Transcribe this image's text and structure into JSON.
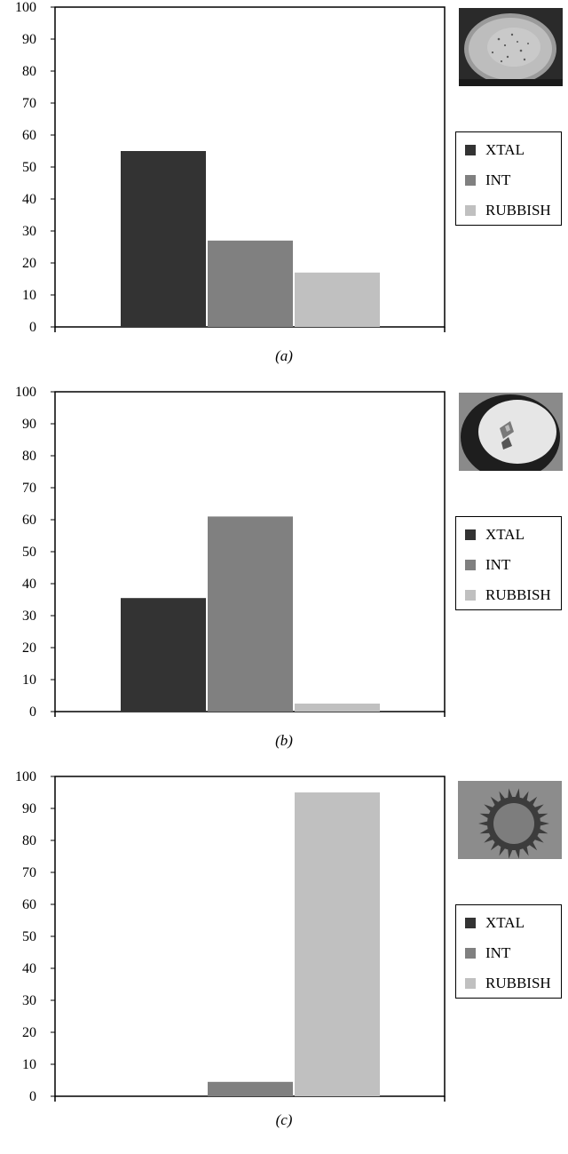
{
  "chart_data": [
    {
      "type": "bar",
      "caption": "(a)",
      "categories": [
        "XTAL",
        "INT",
        "RUBBISH"
      ],
      "values": [
        55,
        27,
        17
      ],
      "ylim": [
        0,
        100
      ],
      "yticks": [
        0,
        10,
        20,
        30,
        40,
        50,
        60,
        70,
        80,
        90,
        100
      ],
      "title": "",
      "xlabel": "",
      "ylabel": "",
      "legend": [
        "XTAL",
        "INT",
        "RUBBISH"
      ],
      "legend_position": "right",
      "grid": false,
      "thumbnail": "crystal-drop-image"
    },
    {
      "type": "bar",
      "caption": "(b)",
      "categories": [
        "XTAL",
        "INT",
        "RUBBISH"
      ],
      "values": [
        35.5,
        61,
        2.5
      ],
      "ylim": [
        0,
        100
      ],
      "yticks": [
        0,
        10,
        20,
        30,
        40,
        50,
        60,
        70,
        80,
        90,
        100
      ],
      "title": "",
      "xlabel": "",
      "ylabel": "",
      "legend": [
        "XTAL",
        "INT",
        "RUBBISH"
      ],
      "legend_position": "right",
      "grid": false,
      "thumbnail": "intermediate-drop-image"
    },
    {
      "type": "bar",
      "caption": "(c)",
      "categories": [
        "XTAL",
        "INT",
        "RUBBISH"
      ],
      "values": [
        0,
        4.5,
        95
      ],
      "ylim": [
        0,
        100
      ],
      "yticks": [
        0,
        10,
        20,
        30,
        40,
        50,
        60,
        70,
        80,
        90,
        100
      ],
      "title": "",
      "xlabel": "",
      "ylabel": "",
      "legend": [
        "XTAL",
        "INT",
        "RUBBISH"
      ],
      "legend_position": "right",
      "grid": false,
      "thumbnail": "rubbish-drop-image"
    }
  ],
  "colors": {
    "XTAL": "#333333",
    "INT": "#808080",
    "RUBBISH": "#c0c0c0"
  }
}
